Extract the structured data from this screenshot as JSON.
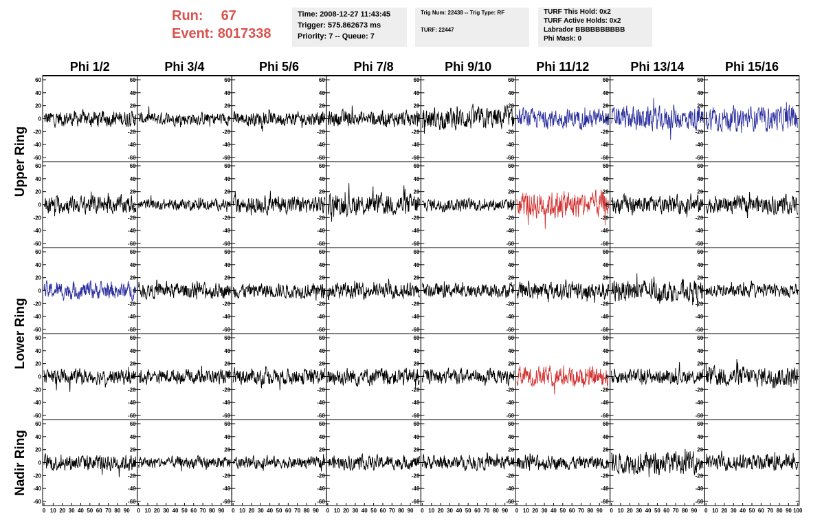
{
  "header": {
    "run_label": "Run:",
    "run_value": "67",
    "event_label": "Event:",
    "event_value": "8017338"
  },
  "info_panel_1": {
    "time": "Time: 2008-12-27 11:43:45",
    "trigger": "Trigger: 575.862673 ms",
    "priority": "Priority: 7 -- Queue: 7"
  },
  "info_panel_2": {
    "trig": "Trig Num: 22438 -- Trig Type: RF",
    "turf": "TURF: 22447"
  },
  "info_panel_3": {
    "hold": "TURF This Hold: 0x2",
    "active": "TURF Active Holds: 0x2",
    "labrador": "Labrador BBBBBBBBBB",
    "phimask": "Phi Mask: 0"
  },
  "phi_headers": [
    "Phi 1/2",
    "Phi 3/4",
    "Phi 5/6",
    "Phi 7/8",
    "Phi 9/10",
    "Phi 11/12",
    "Phi 13/14",
    "Phi 15/16"
  ],
  "ring_labels": [
    "Upper Ring",
    "Lower Ring",
    "Nadir Ring"
  ],
  "colors": {
    "normal": "#000000",
    "blue": "#2b2f9e",
    "red": "#d23030"
  },
  "chart_data": {
    "type": "line",
    "title": "",
    "xlabel": "",
    "ylabel": "",
    "xlim": [
      0,
      100
    ],
    "ylim": [
      -60,
      60
    ],
    "yticks": [
      -60,
      -40,
      -20,
      0,
      20,
      40,
      60
    ],
    "xticks": [
      0,
      10,
      20,
      30,
      40,
      50,
      60,
      70,
      80,
      90,
      100
    ],
    "grid": false,
    "rows": 5,
    "cols": 8,
    "samples_per_trace": 260,
    "amplitudes": [
      [
        16,
        13,
        14,
        16,
        22,
        19,
        24,
        24
      ],
      [
        18,
        11,
        18,
        22,
        13,
        28,
        18,
        18
      ],
      [
        18,
        15,
        15,
        16,
        14,
        18,
        22,
        13
      ],
      [
        15,
        14,
        16,
        18,
        15,
        20,
        15,
        20
      ],
      [
        17,
        12,
        12,
        14,
        14,
        14,
        22,
        16
      ]
    ],
    "trace_colors": [
      [
        "normal",
        "normal",
        "normal",
        "normal",
        "normal",
        "blue",
        "blue",
        "blue"
      ],
      [
        "normal",
        "normal",
        "normal",
        "normal",
        "normal",
        "red",
        "normal",
        "normal"
      ],
      [
        "blue",
        "normal",
        "normal",
        "normal",
        "normal",
        "normal",
        "normal",
        "normal"
      ],
      [
        "normal",
        "normal",
        "normal",
        "normal",
        "normal",
        "red",
        "normal",
        "normal"
      ],
      [
        "normal",
        "normal",
        "normal",
        "normal",
        "normal",
        "normal",
        "normal",
        "normal"
      ]
    ]
  }
}
